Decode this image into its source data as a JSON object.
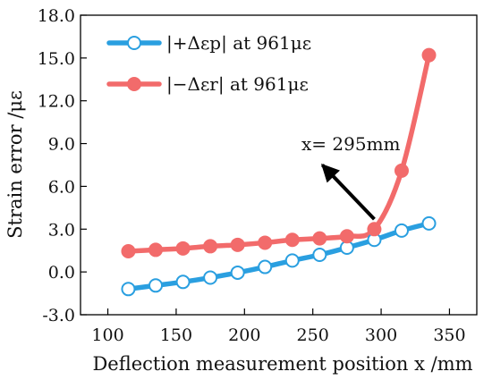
{
  "chart_data": {
    "type": "line",
    "title": "",
    "xlabel": "Deflection measurement position x /mm",
    "ylabel": "Strain error /με",
    "xlim": [
      80,
      370
    ],
    "ylim": [
      -3.0,
      18.0
    ],
    "xticks": [
      "100",
      "150",
      "200",
      "250",
      "300",
      "350"
    ],
    "yticks": [
      "-3.0",
      "0.0",
      "3.0",
      "6.0",
      "9.0",
      "12.0",
      "15.0",
      "18.0"
    ],
    "x": [
      115,
      135,
      155,
      175,
      195,
      215,
      235,
      255,
      275,
      295,
      315,
      335
    ],
    "series": [
      {
        "name": "|+Δεp| at 961με",
        "color": "#2a9fe0",
        "marker": "open-circle",
        "values": [
          -1.2,
          -0.95,
          -0.7,
          -0.4,
          -0.05,
          0.35,
          0.8,
          1.2,
          1.7,
          2.25,
          2.9,
          3.4
        ]
      },
      {
        "name": "|−Δεr| at 961με",
        "color": "#f26b6b",
        "marker": "filled-circle",
        "values": [
          1.45,
          1.55,
          1.65,
          1.8,
          1.9,
          2.05,
          2.25,
          2.35,
          2.5,
          3.0,
          7.1,
          15.2
        ]
      }
    ],
    "annotation": {
      "text": "x= 295mm",
      "arrow_from": [
        295,
        3.7
      ],
      "arrow_to": [
        257,
        7.5
      ]
    },
    "legend": "top-left",
    "grid": false
  }
}
